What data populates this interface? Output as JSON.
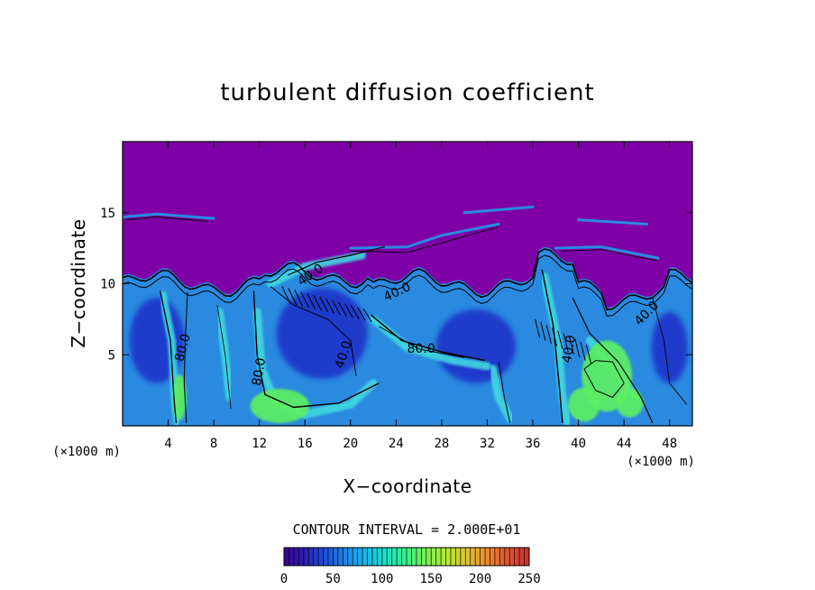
{
  "chart_data": {
    "type": "heatmap",
    "title": "turbulent diffusion coefficient",
    "xlabel": "X−coordinate",
    "ylabel": "Z−coordinate",
    "x_unit": "(×1000 m)",
    "x_unit_right": "(×1000 m)",
    "xlim": [
      0,
      50
    ],
    "ylim": [
      0,
      20
    ],
    "xticks": [
      4,
      8,
      12,
      16,
      20,
      24,
      28,
      32,
      36,
      40,
      44,
      48
    ],
    "xtick_labels": [
      "4",
      "8",
      "12",
      "16",
      "20",
      "24",
      "28",
      "32",
      "36",
      "40",
      "44",
      "48"
    ],
    "yticks": [
      5,
      10,
      15
    ],
    "ytick_labels": [
      "5",
      "10",
      "15"
    ],
    "contour_interval_text": "CONTOUR INTERVAL =  2.000E+01",
    "contour_interval": 20,
    "contour_labels": [
      {
        "text": "80.0",
        "x": 5.3,
        "z": 5.5,
        "angle": -75
      },
      {
        "text": "80.0",
        "x": 12.0,
        "z": 3.8,
        "angle": -80
      },
      {
        "text": "40.0",
        "x": 16.5,
        "z": 10.6,
        "angle": -35
      },
      {
        "text": "40.0",
        "x": 24.1,
        "z": 9.4,
        "angle": -25
      },
      {
        "text": "40.0",
        "x": 19.4,
        "z": 5.0,
        "angle": -72
      },
      {
        "text": "80.0",
        "x": 26.2,
        "z": 5.4,
        "angle": 0
      },
      {
        "text": "40.0",
        "x": 39.2,
        "z": 5.4,
        "angle": -80
      },
      {
        "text": "40.0",
        "x": 46.0,
        "z": 7.9,
        "angle": -45
      }
    ],
    "colorbar": {
      "min": 0,
      "max": 250,
      "ticks": [
        0,
        50,
        100,
        150,
        200,
        250
      ],
      "tick_labels": [
        "0",
        "50",
        "100",
        "150",
        "200",
        "250"
      ],
      "colors": [
        "#3a0099",
        "#2a1fb0",
        "#2050d8",
        "#1f86e8",
        "#1cb6e8",
        "#1ee0c0",
        "#3cf08a",
        "#7cf050",
        "#b8e838",
        "#e0c030",
        "#ec8830",
        "#e25030",
        "#c92f2f"
      ]
    },
    "field_colors": {
      "background_low": "#7e00a7",
      "mid_blue": "#2a8ae0",
      "deep_blue": "#1a2fc8",
      "cyan": "#3fd8e0",
      "green": "#5ff060"
    }
  }
}
